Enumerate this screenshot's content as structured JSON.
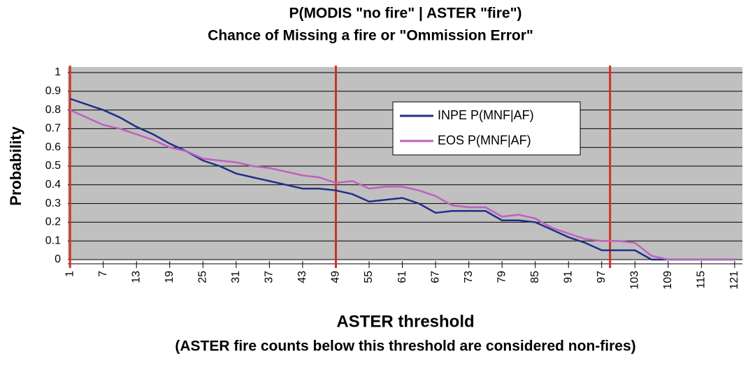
{
  "chart_data": {
    "type": "line",
    "title": "P(MODIS \"no fire\" | ASTER \"fire\")",
    "subtitle": "Chance of Missing a fire or \"Ommission Error\"",
    "xlabel": "ASTER threshold",
    "note": "(ASTER fire counts below this threshold are considered non-fires)",
    "ylabel": "Probability",
    "x": [
      1,
      4,
      7,
      10,
      13,
      16,
      19,
      22,
      25,
      28,
      31,
      34,
      37,
      40,
      43,
      46,
      49,
      52,
      55,
      58,
      61,
      64,
      67,
      70,
      73,
      76,
      79,
      82,
      85,
      88,
      91,
      94,
      97,
      100,
      103,
      106,
      109,
      112,
      115,
      118,
      121
    ],
    "series": [
      {
        "name": "INPE P(MNF|AF)",
        "color": "#1f2f8a",
        "values": [
          0.86,
          0.83,
          0.8,
          0.76,
          0.71,
          0.67,
          0.62,
          0.58,
          0.53,
          0.5,
          0.46,
          0.44,
          0.42,
          0.4,
          0.38,
          0.38,
          0.37,
          0.35,
          0.31,
          0.32,
          0.33,
          0.3,
          0.25,
          0.26,
          0.26,
          0.26,
          0.21,
          0.21,
          0.2,
          0.16,
          0.12,
          0.09,
          0.05,
          0.05,
          0.05,
          0,
          0,
          0,
          0,
          0,
          0
        ]
      },
      {
        "name": "EOS P(MNF|AF)",
        "color": "#c060c0",
        "values": [
          0.8,
          0.76,
          0.72,
          0.7,
          0.67,
          0.64,
          0.6,
          0.58,
          0.54,
          0.53,
          0.52,
          0.5,
          0.49,
          0.47,
          0.45,
          0.44,
          0.41,
          0.42,
          0.38,
          0.39,
          0.39,
          0.37,
          0.34,
          0.29,
          0.28,
          0.28,
          0.23,
          0.24,
          0.22,
          0.17,
          0.14,
          0.11,
          0.1,
          0.1,
          0.09,
          0.02,
          0,
          0,
          0,
          0,
          0
        ]
      }
    ],
    "xlim": [
      0.6,
      122.4
    ],
    "xticks": [
      1,
      7,
      13,
      19,
      25,
      31,
      37,
      43,
      49,
      55,
      61,
      67,
      73,
      79,
      85,
      91,
      97,
      103,
      109,
      115,
      121
    ],
    "ylim": [
      0,
      1
    ],
    "yticks": [
      0,
      0.1,
      0.2,
      0.3,
      0.4,
      0.5,
      0.6,
      0.7,
      0.8,
      0.9,
      1
    ],
    "grid": true,
    "vlines": [
      1,
      49,
      98.5
    ],
    "vline_color": "#d03020",
    "legend": "upper-center"
  }
}
